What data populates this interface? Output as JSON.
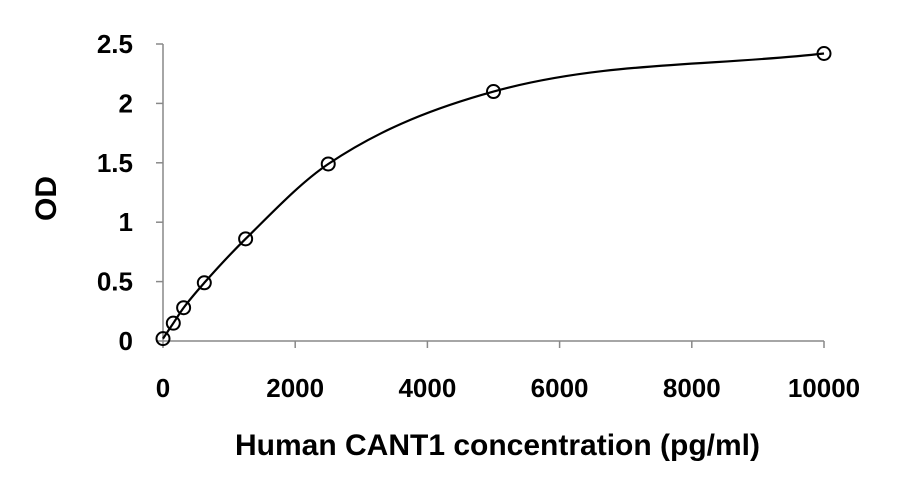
{
  "chart_data": {
    "type": "scatter",
    "title": "",
    "xlabel": "Human CANT1 concentration (pg/ml)",
    "ylabel": "OD",
    "xlim": [
      0,
      10000
    ],
    "ylim": [
      0,
      2.5
    ],
    "x_ticks": [
      0,
      2000,
      4000,
      6000,
      8000,
      10000
    ],
    "x_tick_labels": [
      "0",
      "2000",
      "4000",
      "6000",
      "8000",
      "10000"
    ],
    "y_ticks": [
      0,
      0.5,
      1,
      1.5,
      2,
      2.5
    ],
    "y_tick_labels": [
      "0",
      "0.5",
      "1",
      "1.5",
      "2",
      "2.5"
    ],
    "grid": false,
    "legend": "none",
    "marker": "open-circle",
    "fit": "smooth-curve",
    "series": [
      {
        "x": [
          0,
          156,
          312,
          625,
          1250,
          2500,
          5000,
          10000
        ],
        "y": [
          0.02,
          0.15,
          0.28,
          0.49,
          0.86,
          1.49,
          2.1,
          2.42
        ]
      }
    ]
  }
}
